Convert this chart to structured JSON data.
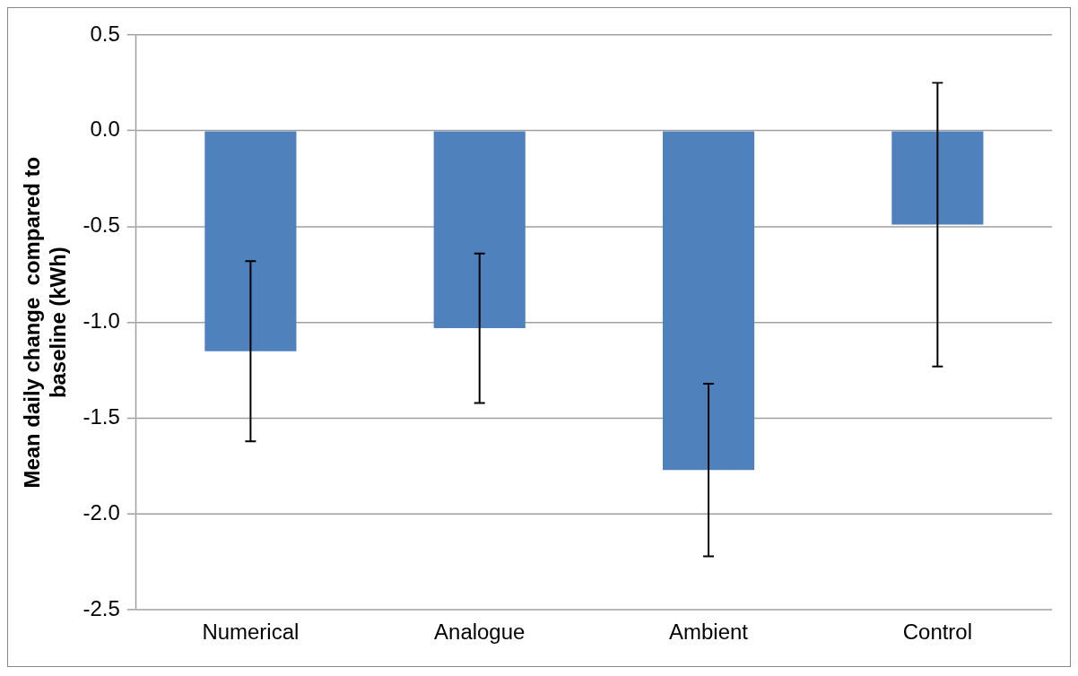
{
  "chart_data": {
    "type": "bar",
    "ylabel": "Mean daily change  compared to baseline (kWh)",
    "categories": [
      "Numerical",
      "Analogue",
      "Ambient",
      "Control"
    ],
    "values": [
      -1.15,
      -1.03,
      -1.77,
      -0.49
    ],
    "errors": [
      0.47,
      0.39,
      0.45,
      0.74
    ],
    "color": "#4f81bd",
    "ylim": [
      -2.5,
      0.5
    ],
    "yticks": [
      -2.5,
      {
        "value": -2,
        "label": "-2.0"
      },
      -1.5,
      {
        "value": -1,
        "label": "-1.0"
      },
      -0.5,
      {
        "value": 0,
        "label": "0.0"
      },
      0.5
    ],
    "grid": "y",
    "legend": false
  }
}
